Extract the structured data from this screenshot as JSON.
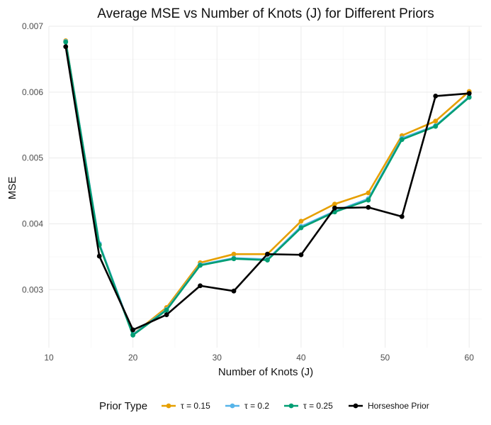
{
  "chart_data": {
    "type": "line",
    "title": "Average MSE vs Number of Knots (J) for Different Priors",
    "xlabel": "Number of Knots (J)",
    "ylabel": "MSE",
    "xlim": [
      10,
      61.5
    ],
    "ylim": [
      0.00212,
      0.007
    ],
    "x_ticks": [
      10,
      20,
      30,
      40,
      50,
      60
    ],
    "y_ticks": [
      0.003,
      0.004,
      0.005,
      0.006,
      0.007
    ],
    "x_tick_labels": [
      "10",
      "20",
      "30",
      "40",
      "50",
      "60"
    ],
    "y_tick_labels": [
      "0.003",
      "0.004",
      "0.005",
      "0.006",
      "0.007"
    ],
    "grid": true,
    "legend_title": "Prior Type",
    "legend_position": "bottom",
    "x": [
      12,
      16,
      20,
      24,
      28,
      32,
      36,
      40,
      44,
      48,
      52,
      56,
      60
    ],
    "series": [
      {
        "name": "τ = 0.15",
        "color": "#E69F00",
        "values": [
          0.00678,
          0.00368,
          0.00232,
          0.00273,
          0.00341,
          0.00354,
          0.00354,
          0.00404,
          0.0043,
          0.00447,
          0.00534,
          0.00556,
          0.00601
        ]
      },
      {
        "name": "τ = 0.2",
        "color": "#56B4E9",
        "values": [
          0.00677,
          0.0037,
          0.00232,
          0.0027,
          0.00338,
          0.00348,
          0.00346,
          0.00396,
          0.00419,
          0.00438,
          0.0053,
          0.00549,
          0.00593
        ]
      },
      {
        "name": "τ = 0.25",
        "color": "#009E73",
        "values": [
          0.00676,
          0.00368,
          0.00231,
          0.00269,
          0.00337,
          0.00347,
          0.00345,
          0.00394,
          0.00418,
          0.00436,
          0.00528,
          0.00548,
          0.00592
        ]
      },
      {
        "name": "Horseshoe Prior",
        "color": "#000000",
        "values": [
          0.00669,
          0.00351,
          0.00239,
          0.00262,
          0.00306,
          0.00298,
          0.00354,
          0.00353,
          0.00424,
          0.00425,
          0.00411,
          0.00594,
          0.00598
        ]
      }
    ]
  }
}
